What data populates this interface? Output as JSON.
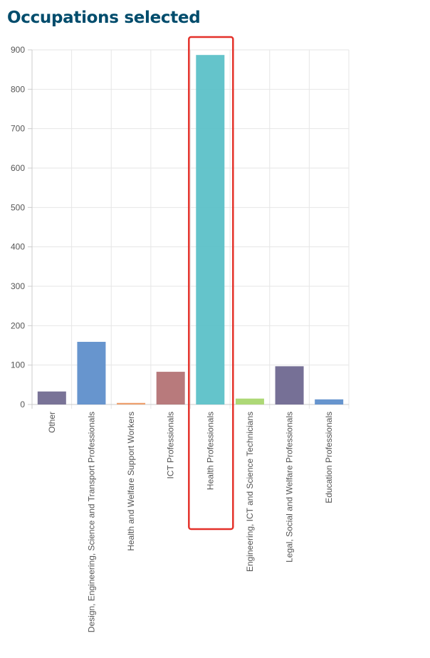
{
  "header": {
    "title": "Occupations selected"
  },
  "chart_data": {
    "type": "bar",
    "title": "Occupations selected",
    "xlabel": "",
    "ylabel": "",
    "ylim": [
      0,
      900
    ],
    "yticks": [
      0,
      100,
      200,
      300,
      400,
      500,
      600,
      700,
      800,
      900
    ],
    "grid": true,
    "legend": "none",
    "categories": [
      "Other",
      "Design, Engineering, Science and Transport Professionals",
      "Health and Welfare Support Workers",
      "ICT Professionals",
      "Health Professionals",
      "Engineering, ICT and Science Technicians",
      "Legal, Social and Welfare Professionals",
      "Education Professionals"
    ],
    "values": [
      33,
      159,
      4,
      83,
      887,
      15,
      97,
      13
    ],
    "colors": [
      "#726c91",
      "#5f8fcb",
      "#ed9b66",
      "#b47375",
      "#5cc1c8",
      "#a9d66f",
      "#6f6890",
      "#5f8fcb"
    ],
    "highlight": {
      "category": "Health Professionals",
      "color": "#e4312a"
    }
  }
}
